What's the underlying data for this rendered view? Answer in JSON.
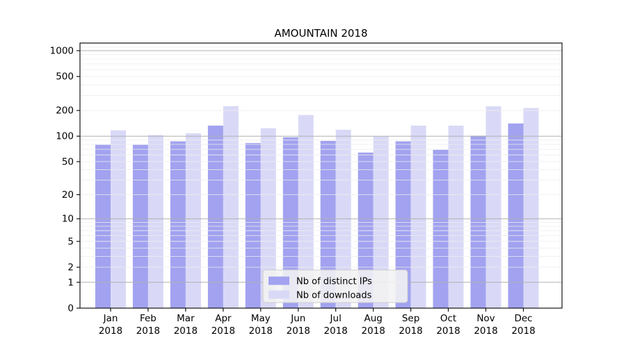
{
  "chart_data": {
    "type": "bar",
    "title": "AMOUNTAIN 2018",
    "categories": [
      "Jan",
      "Feb",
      "Mar",
      "Apr",
      "May",
      "Jun",
      "Jul",
      "Aug",
      "Sep",
      "Oct",
      "Nov",
      "Dec"
    ],
    "category_year": "2018",
    "series": [
      {
        "name": "Nb of distinct IPs",
        "color": "#a2a2f0",
        "values": [
          79,
          79,
          87,
          133,
          83,
          97,
          88,
          64,
          87,
          69,
          101,
          141
        ]
      },
      {
        "name": "Nb of downloads",
        "color": "#d9d9f7",
        "values": [
          117,
          103,
          108,
          225,
          124,
          177,
          119,
          99,
          133,
          133,
          224,
          214
        ]
      }
    ],
    "y_axis": {
      "scale": "symlog-log1p",
      "ticks": [
        1000,
        500,
        200,
        100,
        50,
        20,
        10,
        5,
        2,
        1,
        0
      ],
      "range": [
        0,
        1220
      ],
      "major_gridlines_at": [
        1,
        10,
        100,
        1000
      ]
    },
    "x_axis": {
      "label_line2": "2018"
    },
    "legend": {
      "position": "bottom-center"
    },
    "grid": {
      "enabled": true,
      "minor_color": "#ededed",
      "major_color": "#b0b0b0"
    },
    "colors": {
      "axis": "#000000",
      "text": "#000000",
      "legend_background": "#f2f2f2",
      "legend_border": "#cccccc"
    }
  }
}
